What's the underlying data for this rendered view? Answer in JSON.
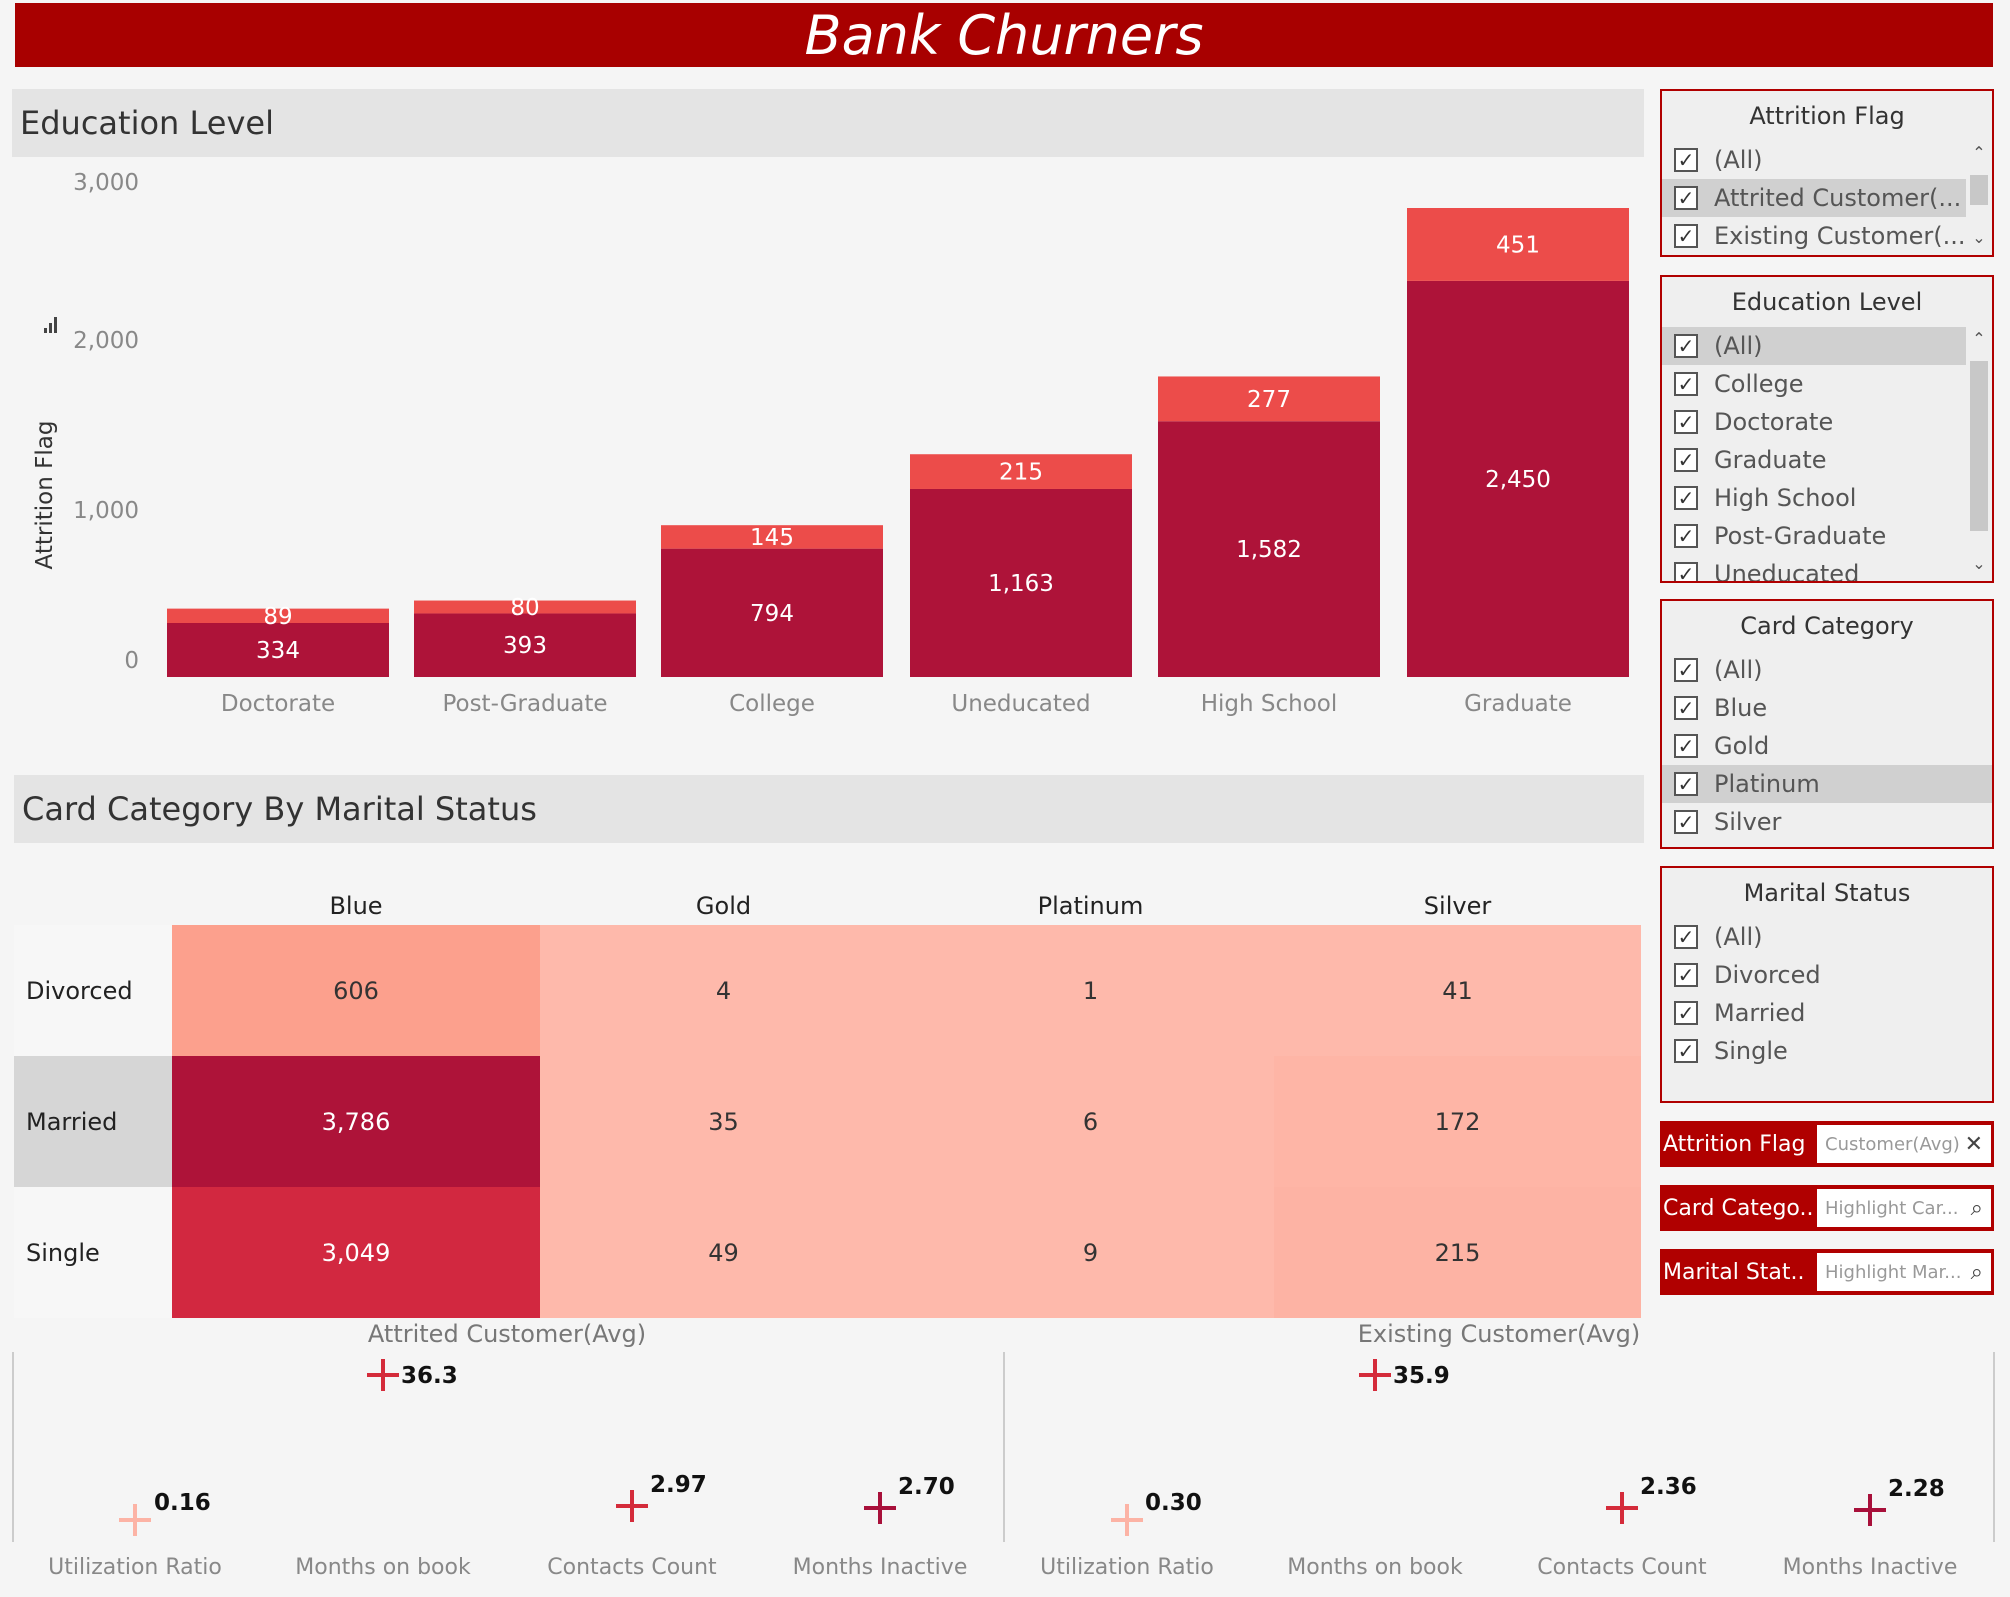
{
  "title": "Bank Churners",
  "education_panel": {
    "title": "Education Level"
  },
  "marital_panel": {
    "title": "Card Category By Marital Status"
  },
  "chart_data": [
    {
      "type": "bar",
      "stacked": true,
      "title": "Education Level",
      "ylabel": "Attrition Flag",
      "ylim": [
        0,
        3000
      ],
      "yticks": [
        "3,000",
        "2,000",
        "1,000",
        "0"
      ],
      "categories": [
        "Doctorate",
        "Post-Graduate",
        "College",
        "Uneducated",
        "High School",
        "Graduate"
      ],
      "series": [
        {
          "values": [
            334,
            393,
            794,
            1163,
            1582,
            2450
          ],
          "labels": [
            "334",
            "393",
            "794",
            "1,163",
            "1,582",
            "2,450"
          ],
          "color": "#ae1339"
        },
        {
          "values": [
            89,
            80,
            145,
            215,
            277,
            451
          ],
          "labels": [
            "89",
            "80",
            "145",
            "215",
            "277",
            "451"
          ],
          "color": "#ec4c4a"
        }
      ]
    },
    {
      "type": "heatmap",
      "title": "Card Category By Marital Status",
      "columns": [
        "Blue",
        "Gold",
        "Platinum",
        "Silver"
      ],
      "rows": [
        "Divorced",
        "Married",
        "Single"
      ],
      "values": [
        [
          606,
          4,
          1,
          41
        ],
        [
          3786,
          35,
          6,
          172
        ],
        [
          3049,
          49,
          9,
          215
        ]
      ],
      "labels": [
        [
          "606",
          "4",
          "1",
          "41"
        ],
        [
          "3,786",
          "35",
          "6",
          "172"
        ],
        [
          "3,049",
          "49",
          "9",
          "215"
        ]
      ],
      "colors": [
        [
          "#fca08d",
          "#feb9ab",
          "#feb9ab",
          "#feb9ab"
        ],
        [
          "#ae1339",
          "#feb9ab",
          "#feb9ab",
          "#feb5a6"
        ],
        [
          "#d22840",
          "#feb9ab",
          "#feb9ab",
          "#fdb3a4"
        ]
      ]
    },
    {
      "type": "scatter",
      "title": "Attrited Customer(Avg)",
      "categories": [
        "Utilization Ratio",
        "Months on book",
        "Contacts Count",
        "Months Inactive"
      ],
      "values": [
        0.16,
        36.3,
        2.97,
        2.7
      ],
      "labels": [
        "0.16",
        "36.3",
        "2.97",
        "2.70"
      ],
      "colors": [
        "#fcb3a5",
        "#d42b3a",
        "#d42b3a",
        "#a8103a"
      ]
    },
    {
      "type": "scatter",
      "title": "Existing Customer(Avg)",
      "categories": [
        "Utilization Ratio",
        "Months on book",
        "Contacts Count",
        "Months Inactive"
      ],
      "values": [
        0.3,
        35.9,
        2.36,
        2.28
      ],
      "labels": [
        "0.30",
        "35.9",
        "2.36",
        "2.28"
      ],
      "colors": [
        "#fcb3a5",
        "#d42b3a",
        "#d42b3a",
        "#a8103a"
      ]
    }
  ],
  "filters": {
    "attrition": {
      "title": "Attrition Flag",
      "items": [
        "(All)",
        "Attrited Customer(...",
        "Existing Customer(..."
      ]
    },
    "education": {
      "title": "Education Level",
      "items": [
        "(All)",
        "College",
        "Doctorate",
        "Graduate",
        "High School",
        "Post-Graduate",
        "Uneducated"
      ]
    },
    "card": {
      "title": "Card Category",
      "items": [
        "(All)",
        "Blue",
        "Gold",
        "Platinum",
        "Silver"
      ]
    },
    "marital": {
      "title": "Marital Status",
      "items": [
        "(All)",
        "Divorced",
        "Married",
        "Single"
      ]
    }
  },
  "parameters": [
    {
      "label": "Attrition Flag",
      "value": "Customer(Avg)",
      "icon": "close-icon"
    },
    {
      "label": "Card Catego..",
      "value": "Highlight Car...",
      "icon": "search-icon"
    },
    {
      "label": "Marital Stat..",
      "value": "Highlight Mar...",
      "icon": "search-icon"
    }
  ],
  "checkmark": "✓",
  "scroll_up": "⌃",
  "scroll_down": "⌄",
  "sort_icon": "bar-sort-icon"
}
